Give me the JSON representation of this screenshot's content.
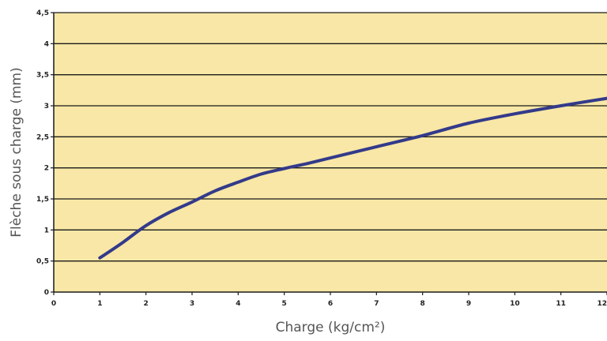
{
  "chart_data": {
    "type": "line",
    "xlabel": "Charge (kg/cm²)",
    "ylabel": "Flèche sous charge (mm)",
    "xlim": [
      0,
      12
    ],
    "ylim": [
      0,
      4.5
    ],
    "x_ticks": [
      "0",
      "1",
      "2",
      "3",
      "4",
      "5",
      "6",
      "7",
      "8",
      "9",
      "10",
      "11",
      "12"
    ],
    "y_ticks": [
      "0",
      "0,5",
      "1",
      "1,5",
      "2",
      "2,5",
      "3",
      "3,5",
      "4",
      "4,5"
    ],
    "grid": "horizontal",
    "series": [
      {
        "x": [
          1,
          1.5,
          2,
          2.5,
          3,
          3.5,
          4,
          4.5,
          5,
          5.5,
          6,
          7,
          8,
          9,
          10,
          11,
          12
        ],
        "y": [
          0.55,
          0.8,
          1.07,
          1.28,
          1.45,
          1.63,
          1.77,
          1.9,
          1.99,
          2.07,
          2.16,
          2.34,
          2.52,
          2.72,
          2.87,
          3.0,
          3.12
        ]
      }
    ],
    "colors": {
      "plot_background": "#f8e7a6",
      "line": "#333a8a",
      "grid": "#1a1a1a"
    }
  }
}
